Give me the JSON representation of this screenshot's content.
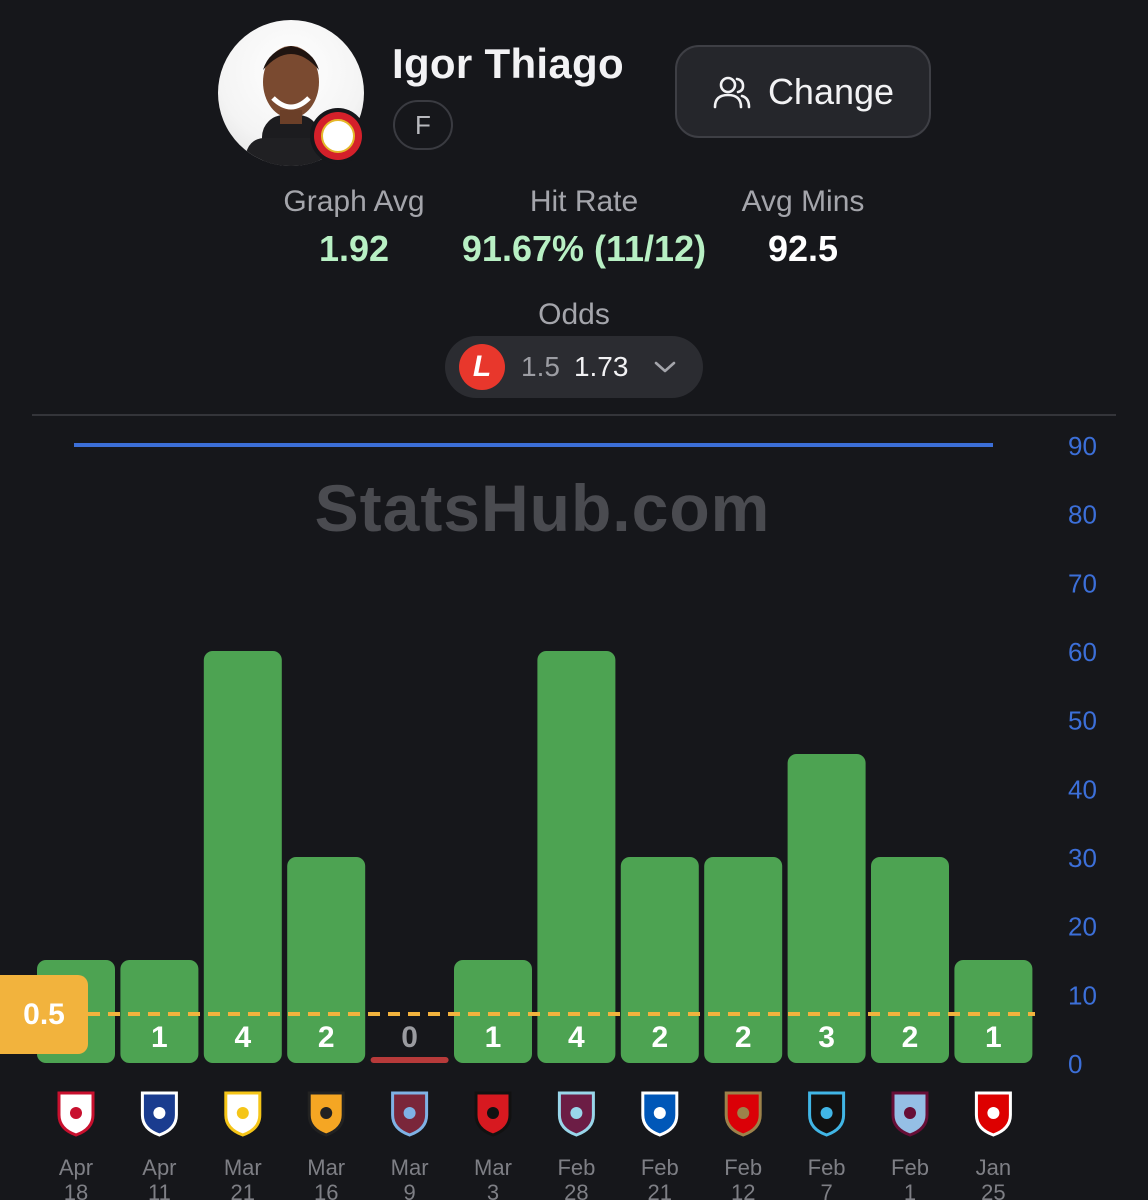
{
  "player": {
    "name": "Igor Thiago",
    "position": "F"
  },
  "change_label": "Change",
  "icons": {
    "change": "users-icon",
    "dropdown": "chevron-down-icon",
    "club": "brentford-crest-icon",
    "bookmaker": "ladbrokes-logo-icon"
  },
  "stats": [
    {
      "label": "Graph Avg",
      "value": "1.92",
      "color": "#b8f0c4"
    },
    {
      "label": "Hit Rate",
      "value": "91.67% (11/12)",
      "color": "#b8f0c4"
    },
    {
      "label": "Avg Mins",
      "value": "92.5",
      "color": "#ffffff"
    }
  ],
  "odds": {
    "label": "Odds",
    "bookmaker_letter": "L",
    "line": "1.5",
    "price": "1.73"
  },
  "watermark": "StatsHub.com",
  "chart_data": {
    "type": "bar",
    "threshold": 0.5,
    "threshold_label": "0.5",
    "y_ticks": [
      0,
      10,
      20,
      30,
      40,
      50,
      60,
      70,
      80,
      90
    ],
    "ylim": [
      0,
      90
    ],
    "minutes_line": 90,
    "bar_color": "#4da352",
    "miss_color": "#b73a3a",
    "line_color": "#3c6fd8",
    "axis_color": "#3c6fd8",
    "threshold_color": "#f2b33d",
    "categories": [
      {
        "date_month": "Apr",
        "date_day": "18",
        "value": 1,
        "opponent_color": "#ffffff",
        "opponent_accent": "#c8102e",
        "show_label": false
      },
      {
        "date_month": "Apr",
        "date_day": "11",
        "value": 1,
        "opponent_color": "#1a3c8f",
        "opponent_accent": "#ffffff",
        "show_label": true
      },
      {
        "date_month": "Mar",
        "date_day": "21",
        "value": 4,
        "opponent_color": "#ffffff",
        "opponent_accent": "#f5c518",
        "show_label": true
      },
      {
        "date_month": "Mar",
        "date_day": "16",
        "value": 2,
        "opponent_color": "#f5a623",
        "opponent_accent": "#222222",
        "show_label": true
      },
      {
        "date_month": "Mar",
        "date_day": "9",
        "value": 0,
        "opponent_color": "#7a263a",
        "opponent_accent": "#7fb2e5",
        "show_label": true
      },
      {
        "date_month": "Mar",
        "date_day": "3",
        "value": 1,
        "opponent_color": "#d71920",
        "opponent_accent": "#111111",
        "show_label": true
      },
      {
        "date_month": "Feb",
        "date_day": "28",
        "value": 4,
        "opponent_color": "#6c1d45",
        "opponent_accent": "#99d6ea",
        "show_label": true
      },
      {
        "date_month": "Feb",
        "date_day": "21",
        "value": 2,
        "opponent_color": "#0057b8",
        "opponent_accent": "#ffffff",
        "show_label": true
      },
      {
        "date_month": "Feb",
        "date_day": "12",
        "value": 2,
        "opponent_color": "#db0007",
        "opponent_accent": "#9c824a",
        "show_label": true
      },
      {
        "date_month": "Feb",
        "date_day": "7",
        "value": 3,
        "opponent_color": "#111111",
        "opponent_accent": "#41b6e6",
        "show_label": true
      },
      {
        "date_month": "Feb",
        "date_day": "1",
        "value": 2,
        "opponent_color": "#95bfe5",
        "opponent_accent": "#670e36",
        "show_label": true
      },
      {
        "date_month": "Jan",
        "date_day": "25",
        "value": 1,
        "opponent_color": "#dd0000",
        "opponent_accent": "#ffffff",
        "show_label": true
      }
    ],
    "bar_heights_as_minutes": [
      15,
      15,
      60,
      30,
      0,
      15,
      60,
      30,
      30,
      45,
      30,
      15
    ]
  }
}
